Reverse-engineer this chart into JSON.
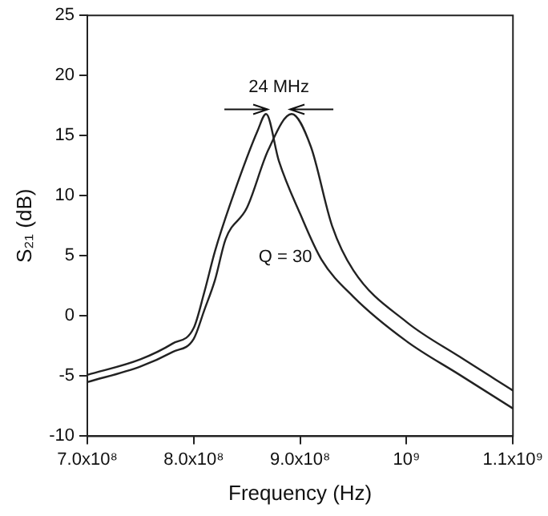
{
  "chart_data": {
    "type": "line",
    "xlabel": "Frequency (Hz)",
    "ylabel": "S₂₁ (dB)",
    "xlim": [
      700000000,
      1100000000
    ],
    "xticks": [
      {
        "value": 700000000,
        "label": "7.0x10⁸"
      },
      {
        "value": 800000000,
        "label": "8.0x10⁸"
      },
      {
        "value": 900000000,
        "label": "9.0x10⁸"
      },
      {
        "value": 1000000000,
        "label": "10⁹"
      },
      {
        "value": 1100000000,
        "label": "1.1x10⁹"
      }
    ],
    "ylim": [
      -10,
      25
    ],
    "yticks": [
      -10,
      -5,
      0,
      5,
      10,
      15,
      20,
      25
    ],
    "grid": false,
    "marker": "none",
    "line_style": "solid",
    "series": [
      {
        "color": "#222222",
        "x": [
          700000000,
          750000000,
          780000000,
          800000000,
          810000000,
          820000000,
          837000000,
          860000000,
          868000000,
          880000000,
          900000000,
          920000000,
          950000000,
          1000000000,
          1050000000,
          1100000000
        ],
        "values": [
          -4.9,
          -3.6,
          -2.3,
          -1.0,
          2.0,
          5.4,
          10,
          15.4,
          16.8,
          12.9,
          8.5,
          4.7,
          1.6,
          -2.1,
          -4.9,
          -7.7
        ]
      },
      {
        "color": "#222222",
        "x": [
          700000000,
          750000000,
          780000000,
          800000000,
          810000000,
          820000000,
          830000000,
          850000000,
          870000000,
          892000000,
          910000000,
          930000000,
          950000000,
          1000000000,
          1050000000,
          1100000000
        ],
        "values": [
          -5.5,
          -4.2,
          -3.0,
          -1.9,
          0.5,
          3.0,
          6.4,
          9.0,
          13.8,
          16.8,
          14.1,
          7.5,
          3.8,
          -0.5,
          -3.4,
          -6.2
        ]
      }
    ],
    "annotations": [
      "24 MHz",
      "Q = 30"
    ]
  }
}
